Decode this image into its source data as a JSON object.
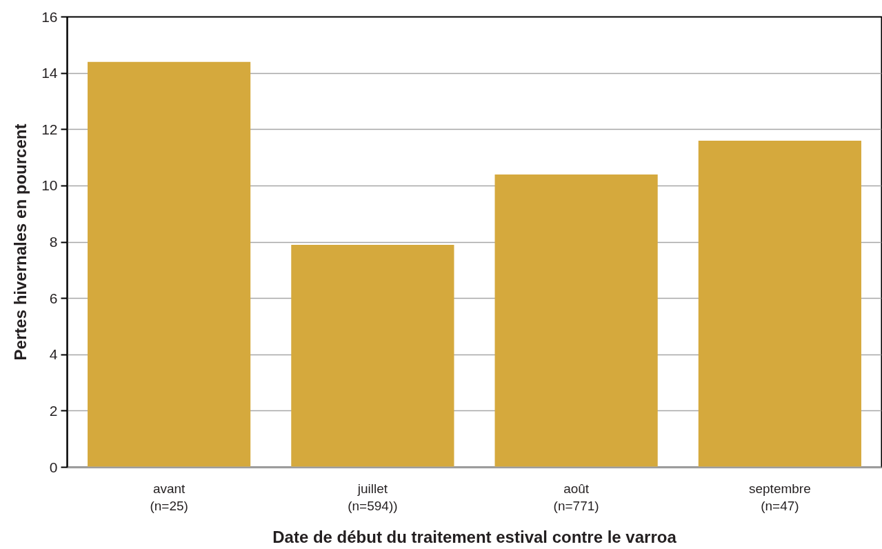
{
  "chart_data": {
    "type": "bar",
    "xlabel": "Date de début du traitement estival contre le varroa",
    "ylabel": "Pertes hivernales en pourcent",
    "categories": [
      "avant\n(n=25)",
      "juillet\n(n=594))",
      "août\n(n=771)",
      "septembre\n(n=47)"
    ],
    "values": [
      14.4,
      7.9,
      10.4,
      11.6
    ],
    "color": "#d5a93d",
    "ylim": [
      0,
      16
    ],
    "yticks": [
      0,
      2,
      4,
      6,
      8,
      10,
      12,
      14,
      16
    ],
    "grid": "y"
  }
}
